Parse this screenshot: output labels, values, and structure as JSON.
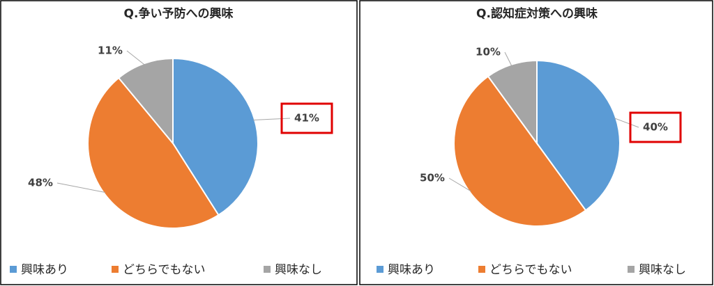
{
  "chart_data": [
    {
      "type": "pie",
      "title": "Q.争い予防への興味",
      "categories": [
        "興味あり",
        "どちらでもない",
        "興味なし"
      ],
      "values": [
        41,
        48,
        11
      ],
      "value_labels": [
        "41%",
        "48%",
        "11%"
      ],
      "colors": [
        "#5b9bd5",
        "#ed7d31",
        "#a5a5a5"
      ]
    },
    {
      "type": "pie",
      "title": "Q.認知症対策への興味",
      "categories": [
        "興味あり",
        "どちらでもない",
        "興味なし"
      ],
      "values": [
        40,
        50,
        10
      ],
      "value_labels": [
        "40%",
        "50%",
        "10%"
      ],
      "colors": [
        "#5b9bd5",
        "#ed7d31",
        "#a5a5a5"
      ]
    }
  ]
}
